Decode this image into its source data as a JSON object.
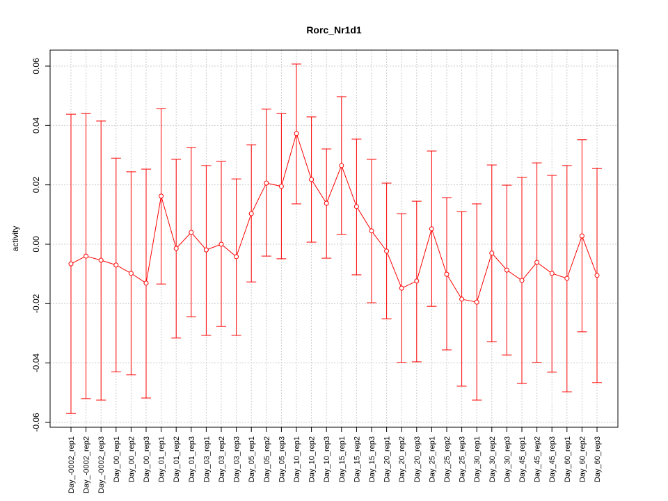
{
  "chart_data": {
    "type": "line",
    "title": "Rorc_Nr1d1",
    "xlabel": "",
    "ylabel": "activity",
    "ylim": [
      -0.062,
      0.065
    ],
    "yticks": [
      -0.06,
      -0.04,
      -0.02,
      0.0,
      0.02,
      0.04,
      0.06
    ],
    "ytick_labels": [
      "-0.06",
      "-0.04",
      "-0.02",
      "0.00",
      "0.02",
      "0.04",
      "0.06"
    ],
    "grid": true,
    "color": "#ff0000",
    "categories": [
      "Day_-0002_rep1",
      "Day_-0002_rep2",
      "Day_-0002_rep3",
      "Day_00_rep1",
      "Day_00_rep2",
      "Day_00_rep3",
      "Day_01_rep1",
      "Day_01_rep2",
      "Day_01_rep3",
      "Day_03_rep1",
      "Day_03_rep2",
      "Day_03_rep3",
      "Day_05_rep1",
      "Day_05_rep2",
      "Day_05_rep3",
      "Day_10_rep1",
      "Day_10_rep2",
      "Day_10_rep3",
      "Day_15_rep1",
      "Day_15_rep2",
      "Day_15_rep3",
      "Day_20_rep1",
      "Day_20_rep2",
      "Day_20_rep3",
      "Day_25_rep1",
      "Day_25_rep2",
      "Day_25_rep3",
      "Day_30_rep1",
      "Day_30_rep2",
      "Day_30_rep3",
      "Day_45_rep1",
      "Day_45_rep2",
      "Day_45_rep3",
      "Day_60_rep1",
      "Day_60_rep2",
      "Day_60_rep3"
    ],
    "values": [
      -0.0066,
      -0.004,
      -0.0054,
      -0.007,
      -0.0098,
      -0.0131,
      0.0162,
      -0.0014,
      0.004,
      -0.0019,
      0.0,
      -0.0042,
      0.0103,
      0.0206,
      0.0195,
      0.0373,
      0.0218,
      0.0138,
      0.0265,
      0.0127,
      0.0045,
      -0.0023,
      -0.0148,
      -0.0124,
      0.0052,
      -0.0101,
      -0.0185,
      -0.0195,
      -0.003,
      -0.0087,
      -0.0122,
      -0.0061,
      -0.0098,
      -0.0115,
      0.0028,
      -0.0105
    ],
    "upper": [
      0.0438,
      0.044,
      0.0415,
      0.029,
      0.0244,
      0.0253,
      0.0457,
      0.0286,
      0.0326,
      0.0265,
      0.0279,
      0.022,
      0.0335,
      0.0455,
      0.044,
      0.0607,
      0.0429,
      0.0321,
      0.0497,
      0.0354,
      0.0286,
      0.0206,
      0.0103,
      0.0145,
      0.0314,
      0.0157,
      0.011,
      0.0136,
      0.0267,
      0.0199,
      0.0225,
      0.0274,
      0.0232,
      0.0265,
      0.0352,
      0.0255
    ],
    "lower": [
      -0.057,
      -0.052,
      -0.0525,
      -0.043,
      -0.044,
      -0.0518,
      -0.0134,
      -0.0316,
      -0.0244,
      -0.0307,
      -0.0277,
      -0.0307,
      -0.0127,
      -0.004,
      -0.0049,
      0.0136,
      0.0007,
      -0.0047,
      0.0033,
      -0.0103,
      -0.0197,
      -0.0251,
      -0.0398,
      -0.0396,
      -0.0209,
      -0.0356,
      -0.0478,
      -0.0525,
      -0.0328,
      -0.0373,
      -0.0469,
      -0.0398,
      -0.0431,
      -0.0497,
      -0.0295,
      -0.0466
    ]
  }
}
